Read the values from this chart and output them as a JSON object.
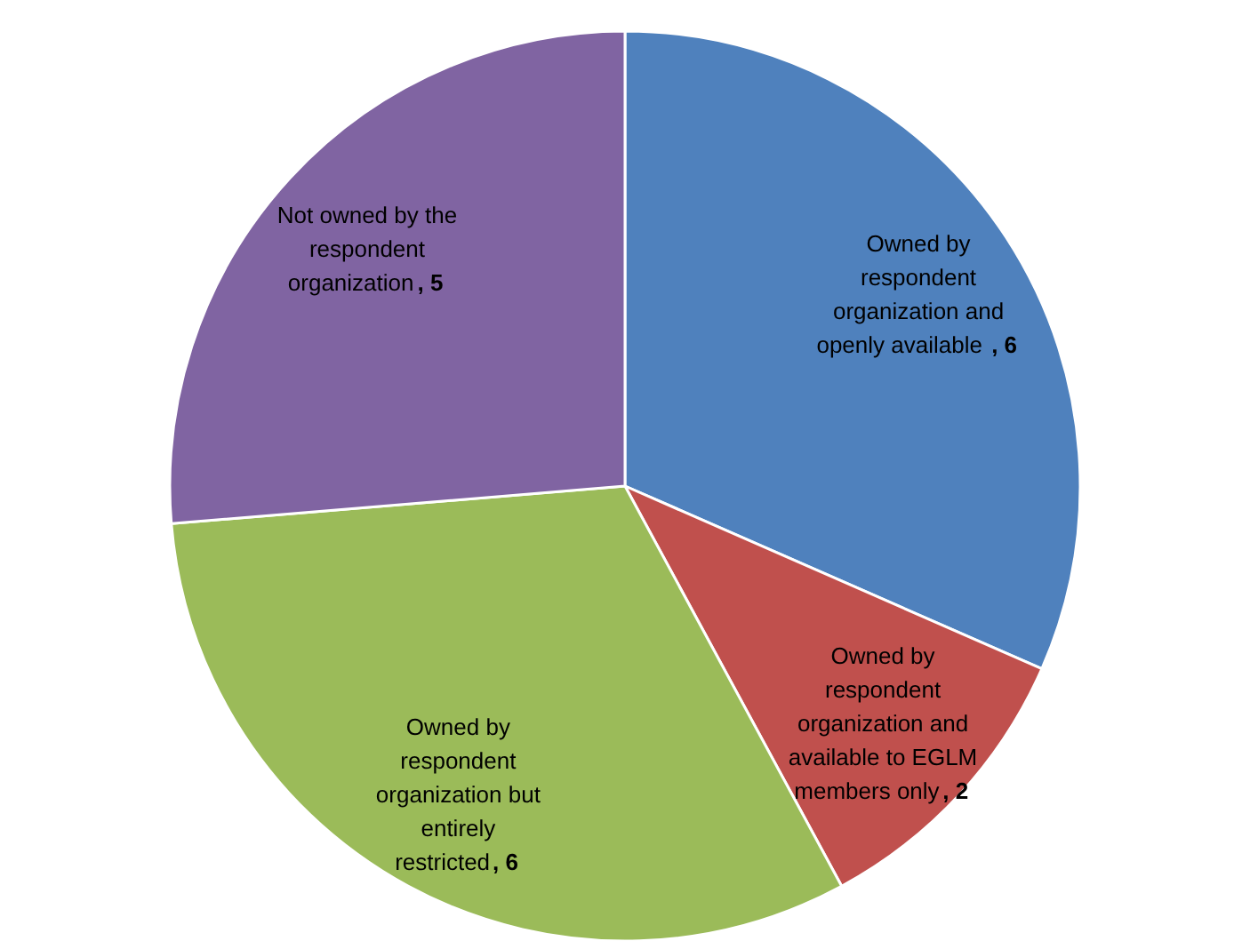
{
  "chart_data": {
    "type": "pie",
    "categories": [
      "Owned by respondent organization and openly available",
      "Owned by respondent organization and available to EGLM members only",
      "Owned by respondent organization but entirely restricted",
      "Not owned by the respondent organization"
    ],
    "values": [
      6,
      2,
      6,
      5
    ],
    "colors": [
      "#4f81bd",
      "#c0504d",
      "#9bbb59",
      "#8064a2"
    ],
    "value_labels": [
      ", 6",
      ", 2",
      ", 6",
      ", 5"
    ]
  }
}
